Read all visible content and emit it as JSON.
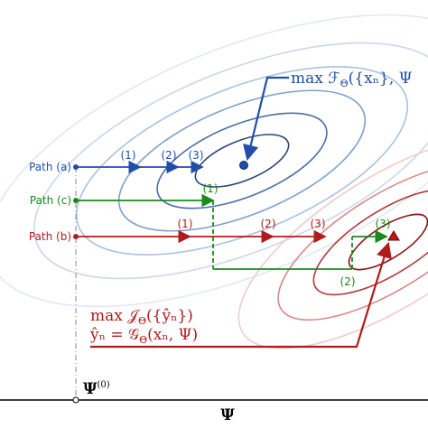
{
  "upper_objective": {
    "main": "max ℱ",
    "sub": "Θ",
    "tail": "({xₙ}, Ψ"
  },
  "lower_objective": {
    "main": "max 𝒥",
    "sub": "Θ",
    "tail": "({ŷₙ})"
  },
  "lower_definition": {
    "main": "ŷₙ = 𝒢",
    "sub": "Θ",
    "tail": "(xₙ, Ψ)"
  },
  "paths": [
    {
      "name": "Path (a)",
      "steps": [
        "(1)",
        "(2)",
        "(3)"
      ]
    },
    {
      "name": "Path (c)",
      "steps": [
        "(1)",
        "(2)",
        "(3)"
      ]
    },
    {
      "name": "Path (b)",
      "steps": [
        "(1)",
        "(2)",
        "(3)"
      ]
    }
  ],
  "axis": {
    "start": "Ψ",
    "start_sup": "(0)",
    "label": "Ψ"
  }
}
